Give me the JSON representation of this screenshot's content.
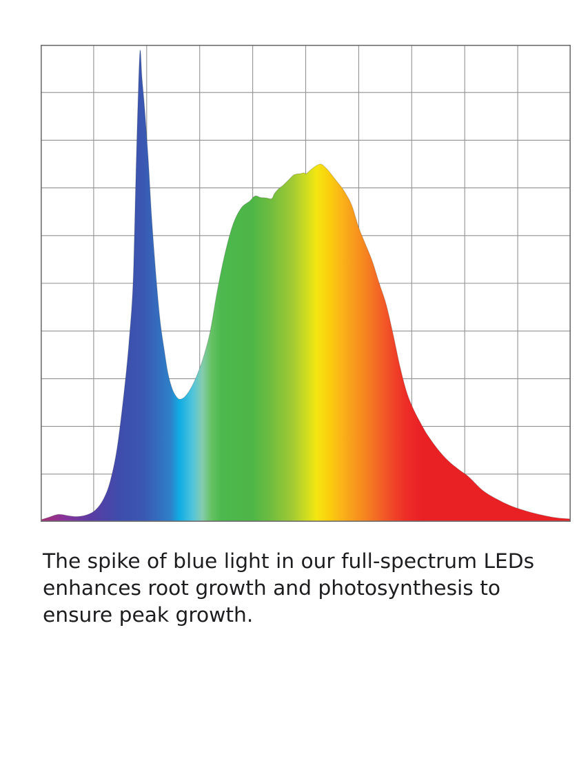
{
  "page": {
    "background_color": "#ffffff"
  },
  "caption": {
    "text": "The spike of blue light in our full-spectrum LEDs enhances root growth and photosynthesis to ensure peak growth.",
    "lines": [
      "The spike of blue light in our full-spectrum LEDs",
      "enhances root growth and photosynthesis to",
      "ensure peak growth."
    ],
    "color": "#1d1d1f"
  },
  "chart_data": {
    "type": "area",
    "title": "",
    "xlabel": "",
    "ylabel": "",
    "axis_labels_visible": false,
    "x_axis": {
      "meaning": "wavelength (nm)",
      "min": 380,
      "max": 780,
      "grid_divisions": 10
    },
    "y_axis": {
      "meaning": "relative intensity",
      "min": 0,
      "max": 1,
      "grid_divisions": 10
    },
    "grid": true,
    "legend": false,
    "grid_color": "#919191",
    "frame_color": "#6e6e6e",
    "edge_shade_color": "rgba(30,30,30,0.16)",
    "series": [
      {
        "name": "full-spectrum LED spectral power distribution",
        "points": [
          [
            380.0,
            0.004
          ],
          [
            385.7,
            0.009
          ],
          [
            393.5,
            0.0155
          ],
          [
            401.3,
            0.0125
          ],
          [
            407.6,
            0.011
          ],
          [
            414.3,
            0.014
          ],
          [
            421.1,
            0.024
          ],
          [
            427.3,
            0.047
          ],
          [
            432.5,
            0.085
          ],
          [
            437.7,
            0.155
          ],
          [
            442.9,
            0.271
          ],
          [
            446.6,
            0.375
          ],
          [
            449.7,
            0.5
          ],
          [
            451.8,
            0.72
          ],
          [
            453.4,
            0.878
          ],
          [
            455.0,
            0.988
          ],
          [
            456.5,
            0.93
          ],
          [
            458.6,
            0.862
          ],
          [
            461.2,
            0.76
          ],
          [
            463.8,
            0.637
          ],
          [
            466.9,
            0.52
          ],
          [
            470.0,
            0.425
          ],
          [
            473.1,
            0.363
          ],
          [
            476.2,
            0.31
          ],
          [
            479.4,
            0.278
          ],
          [
            482.5,
            0.262
          ],
          [
            485.1,
            0.257
          ],
          [
            488.7,
            0.262
          ],
          [
            492.9,
            0.278
          ],
          [
            497.6,
            0.305
          ],
          [
            502.8,
            0.345
          ],
          [
            508.0,
            0.4
          ],
          [
            513.2,
            0.483
          ],
          [
            518.9,
            0.56
          ],
          [
            525.1,
            0.623
          ],
          [
            531.4,
            0.658
          ],
          [
            537.6,
            0.672
          ],
          [
            541.8,
            0.683
          ],
          [
            545.9,
            0.68
          ],
          [
            550.1,
            0.679
          ],
          [
            554.3,
            0.6775
          ],
          [
            556.4,
            0.688
          ],
          [
            559.5,
            0.698
          ],
          [
            563.1,
            0.706
          ],
          [
            566.8,
            0.716
          ],
          [
            570.4,
            0.726
          ],
          [
            573.0,
            0.729
          ],
          [
            576.1,
            0.73
          ],
          [
            578.7,
            0.7315
          ],
          [
            580.3,
            0.7295
          ],
          [
            583.4,
            0.737
          ],
          [
            587.1,
            0.745
          ],
          [
            591.2,
            0.75
          ],
          [
            594.4,
            0.744
          ],
          [
            597.5,
            0.735
          ],
          [
            600.6,
            0.724
          ],
          [
            603.7,
            0.713
          ],
          [
            606.9,
            0.702
          ],
          [
            610.0,
            0.689
          ],
          [
            614.7,
            0.664
          ],
          [
            619.9,
            0.618
          ],
          [
            625.1,
            0.582
          ],
          [
            630.3,
            0.546
          ],
          [
            635.5,
            0.5
          ],
          [
            640.7,
            0.456
          ],
          [
            645.9,
            0.394
          ],
          [
            651.1,
            0.326
          ],
          [
            656.3,
            0.271
          ],
          [
            661.5,
            0.235
          ],
          [
            666.7,
            0.207
          ],
          [
            671.9,
            0.182
          ],
          [
            679.7,
            0.152
          ],
          [
            687.5,
            0.128
          ],
          [
            695.3,
            0.11
          ],
          [
            703.1,
            0.094
          ],
          [
            713.5,
            0.066
          ],
          [
            723.9,
            0.048
          ],
          [
            734.3,
            0.034
          ],
          [
            744.7,
            0.024
          ],
          [
            755.1,
            0.016
          ],
          [
            765.5,
            0.01
          ],
          [
            773.3,
            0.0072
          ],
          [
            780.0,
            0.006
          ]
        ]
      }
    ],
    "fill_gradient_stops": [
      {
        "offset": 0.0,
        "color": "#a72e74"
      },
      {
        "offset": 0.045,
        "color": "#87339a"
      },
      {
        "offset": 0.095,
        "color": "#5a3ca4"
      },
      {
        "offset": 0.15,
        "color": "#3e4dac"
      },
      {
        "offset": 0.195,
        "color": "#3a58b2"
      },
      {
        "offset": 0.245,
        "color": "#2e80c9"
      },
      {
        "offset": 0.262,
        "color": "#0fade4"
      },
      {
        "offset": 0.287,
        "color": "#52c5db"
      },
      {
        "offset": 0.305,
        "color": "#85ccae"
      },
      {
        "offset": 0.322,
        "color": "#66c263"
      },
      {
        "offset": 0.34,
        "color": "#4cb84e"
      },
      {
        "offset": 0.4,
        "color": "#4eb647"
      },
      {
        "offset": 0.435,
        "color": "#71bd3f"
      },
      {
        "offset": 0.475,
        "color": "#a2ca34"
      },
      {
        "offset": 0.503,
        "color": "#d2de1f"
      },
      {
        "offset": 0.52,
        "color": "#f3e612"
      },
      {
        "offset": 0.545,
        "color": "#fbce0d"
      },
      {
        "offset": 0.565,
        "color": "#fab618"
      },
      {
        "offset": 0.59,
        "color": "#f89c1c"
      },
      {
        "offset": 0.615,
        "color": "#f68120"
      },
      {
        "offset": 0.64,
        "color": "#f36326"
      },
      {
        "offset": 0.665,
        "color": "#f04528"
      },
      {
        "offset": 0.69,
        "color": "#ee2c27"
      },
      {
        "offset": 0.72,
        "color": "#e92125"
      },
      {
        "offset": 1.0,
        "color": "#e92125"
      }
    ]
  }
}
